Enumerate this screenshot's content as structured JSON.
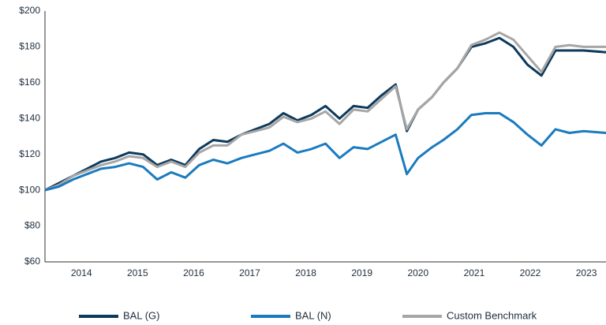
{
  "chart_data": {
    "type": "line",
    "x": [
      2013.85,
      2014.1,
      2014.35,
      2014.6,
      2014.85,
      2015.1,
      2015.35,
      2015.6,
      2015.85,
      2016.1,
      2016.35,
      2016.6,
      2016.85,
      2017.1,
      2017.35,
      2017.6,
      2017.85,
      2018.1,
      2018.35,
      2018.6,
      2018.85,
      2019.1,
      2019.35,
      2019.6,
      2019.85,
      2020.1,
      2020.3,
      2020.5,
      2020.75,
      2020.95,
      2021.2,
      2021.45,
      2021.7,
      2021.95,
      2022.2,
      2022.45,
      2022.7,
      2022.95,
      2023.2,
      2023.45,
      2023.85
    ],
    "series": [
      {
        "name": "BAL (G)",
        "color": "#0d3a5c",
        "values": [
          100,
          104,
          108,
          112,
          116,
          118,
          121,
          120,
          114,
          117,
          114,
          123,
          128,
          127,
          131,
          134,
          137,
          143,
          139,
          142,
          147,
          140,
          147,
          146,
          153,
          159,
          133,
          145,
          152,
          160,
          168,
          180,
          182,
          185,
          180,
          170,
          164,
          178,
          178,
          178,
          177
        ]
      },
      {
        "name": "BAL (N)",
        "color": "#1a7bbf",
        "values": [
          100,
          102,
          106,
          109,
          112,
          113,
          115,
          113,
          106,
          110,
          107,
          114,
          117,
          115,
          118,
          120,
          122,
          126,
          121,
          123,
          126,
          118,
          124,
          123,
          127,
          131,
          109,
          118,
          124,
          128,
          134,
          142,
          143,
          143,
          138,
          131,
          125,
          134,
          132,
          133,
          132
        ]
      },
      {
        "name": "Custom Benchmark",
        "color": "#a6a6a6",
        "values": [
          100,
          103,
          108,
          111,
          114,
          116,
          119,
          118,
          113,
          116,
          113,
          121,
          125,
          125,
          131,
          133,
          135,
          141,
          138,
          140,
          144,
          137,
          145,
          144,
          151,
          158,
          134,
          145,
          152,
          160,
          168,
          181,
          184,
          188,
          184,
          175,
          166,
          180,
          181,
          180,
          180
        ]
      }
    ],
    "xlim": [
      2013.85,
      2023.85
    ],
    "xticks": [
      {
        "value": 2014.5,
        "label": "2014"
      },
      {
        "value": 2015.5,
        "label": "2015"
      },
      {
        "value": 2016.5,
        "label": "2016"
      },
      {
        "value": 2017.5,
        "label": "2017"
      },
      {
        "value": 2018.5,
        "label": "2018"
      },
      {
        "value": 2019.5,
        "label": "2019"
      },
      {
        "value": 2020.5,
        "label": "2020"
      },
      {
        "value": 2021.5,
        "label": "2021"
      },
      {
        "value": 2022.5,
        "label": "2022"
      },
      {
        "value": 2023.5,
        "label": "2023"
      }
    ],
    "ylim": [
      60,
      200
    ],
    "yticks": [
      {
        "value": 60,
        "label": "$60"
      },
      {
        "value": 80,
        "label": "$80"
      },
      {
        "value": 100,
        "label": "$100"
      },
      {
        "value": 120,
        "label": "$120"
      },
      {
        "value": 140,
        "label": "$140"
      },
      {
        "value": 160,
        "label": "$160"
      },
      {
        "value": 180,
        "label": "$180"
      },
      {
        "value": 200,
        "label": "$200"
      }
    ],
    "grid": false,
    "legend": "bottom"
  }
}
